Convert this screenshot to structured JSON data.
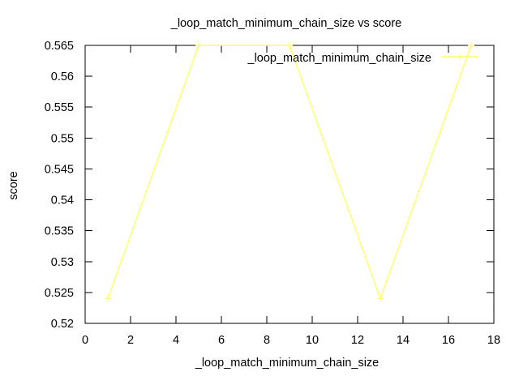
{
  "chart_data": {
    "type": "line",
    "title": "_loop_match_minimum_chain_size vs score",
    "xlabel": "_loop_match_minimum_chain_size",
    "ylabel": "score",
    "xlim": [
      0,
      18
    ],
    "ylim": [
      0.52,
      0.565
    ],
    "xticks": [
      "0",
      "2",
      "4",
      "6",
      "8",
      "10",
      "12",
      "14",
      "16",
      "18"
    ],
    "yticks": [
      "0.52",
      "0.525",
      "0.53",
      "0.535",
      "0.54",
      "0.545",
      "0.55",
      "0.555",
      "0.56",
      "0.565"
    ],
    "grid": false,
    "legend_position": "top-right",
    "series": [
      {
        "name": "_loop_match_minimum_chain_size",
        "color": "#ffff66",
        "x": [
          1,
          5,
          9,
          13,
          17
        ],
        "y": [
          0.524,
          0.565,
          0.565,
          0.524,
          0.565
        ]
      }
    ]
  }
}
